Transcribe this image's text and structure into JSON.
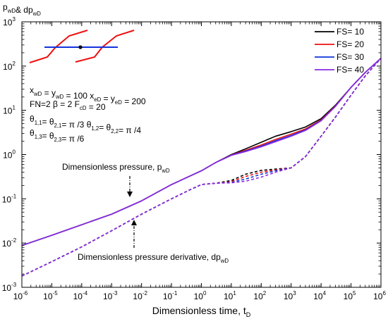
{
  "chart_data": {
    "type": "line",
    "title": "",
    "xlabel": {
      "main": "Dimensionless time, t",
      "sub": "D"
    },
    "ylabel": {
      "parts": [
        [
          "p",
          ""
        ],
        [
          "wD",
          "sub"
        ],
        [
          "& dp",
          ""
        ],
        [
          "wD",
          "sub"
        ]
      ]
    },
    "x_scale": "log",
    "y_scale": "log",
    "xlim": [
      1e-06,
      1000000.0
    ],
    "ylim": [
      0.001,
      1000.0
    ],
    "x_tick_exponents": [
      -6,
      -5,
      -4,
      -3,
      -2,
      -1,
      0,
      1,
      2,
      3,
      4,
      5,
      6
    ],
    "y_tick_exponents": [
      -3,
      -2,
      -1,
      0,
      1,
      2,
      3
    ],
    "tick_base": "10",
    "grid": false,
    "legend_position": "top-right",
    "series": [
      {
        "name": "FS= 10",
        "color": "#000000",
        "pressure": [
          [
            1e-06,
            0.0088
          ],
          [
            1e-05,
            0.015
          ],
          [
            0.0001,
            0.026
          ],
          [
            0.001,
            0.045
          ],
          [
            0.01,
            0.09
          ],
          [
            0.1,
            0.21
          ],
          [
            1,
            0.43
          ],
          [
            3,
            0.66
          ],
          [
            10,
            1.0
          ],
          [
            30,
            1.35
          ],
          [
            100,
            1.9
          ],
          [
            300,
            2.6
          ],
          [
            1000,
            3.3
          ],
          [
            3000,
            4.2
          ],
          [
            10000,
            6.5
          ],
          [
            30000,
            13
          ],
          [
            100000,
            33
          ],
          [
            300000,
            72
          ],
          [
            1000000,
            150
          ]
        ],
        "derivative": [
          [
            1e-06,
            0.0018
          ],
          [
            1e-05,
            0.0038
          ],
          [
            0.0001,
            0.0082
          ],
          [
            0.001,
            0.019
          ],
          [
            0.01,
            0.045
          ],
          [
            0.1,
            0.1
          ],
          [
            0.5,
            0.17
          ],
          [
            1,
            0.21
          ],
          [
            3,
            0.225
          ],
          [
            10,
            0.26
          ],
          [
            30,
            0.36
          ],
          [
            100,
            0.44
          ],
          [
            300,
            0.47
          ],
          [
            1000,
            0.5
          ],
          [
            3000,
            0.9
          ],
          [
            10000,
            2.6
          ],
          [
            30000,
            7
          ],
          [
            100000,
            22
          ],
          [
            300000,
            60
          ],
          [
            1000000,
            150
          ]
        ]
      },
      {
        "name": "FS= 20",
        "color": "#ee1111",
        "pressure": [
          [
            1e-06,
            0.0088
          ],
          [
            1e-05,
            0.015
          ],
          [
            0.0001,
            0.026
          ],
          [
            0.001,
            0.045
          ],
          [
            0.01,
            0.09
          ],
          [
            0.1,
            0.21
          ],
          [
            1,
            0.43
          ],
          [
            3,
            0.66
          ],
          [
            10,
            0.98
          ],
          [
            30,
            1.25
          ],
          [
            100,
            1.65
          ],
          [
            300,
            2.2
          ],
          [
            1000,
            2.9
          ],
          [
            3000,
            3.8
          ],
          [
            10000,
            6.1
          ],
          [
            30000,
            12.5
          ],
          [
            100000,
            33
          ],
          [
            300000,
            72
          ],
          [
            1000000,
            150
          ]
        ],
        "derivative": [
          [
            1e-06,
            0.0018
          ],
          [
            1e-05,
            0.0038
          ],
          [
            0.0001,
            0.0082
          ],
          [
            0.001,
            0.019
          ],
          [
            0.01,
            0.045
          ],
          [
            0.1,
            0.1
          ],
          [
            0.5,
            0.17
          ],
          [
            1,
            0.21
          ],
          [
            3,
            0.225
          ],
          [
            10,
            0.245
          ],
          [
            30,
            0.32
          ],
          [
            100,
            0.4
          ],
          [
            300,
            0.45
          ],
          [
            1000,
            0.5
          ],
          [
            3000,
            0.9
          ],
          [
            10000,
            2.6
          ],
          [
            30000,
            7
          ],
          [
            100000,
            22
          ],
          [
            300000,
            60
          ],
          [
            1000000,
            150
          ]
        ]
      },
      {
        "name": "FS= 30",
        "color": "#1133dd",
        "pressure": [
          [
            1e-06,
            0.0088
          ],
          [
            1e-05,
            0.015
          ],
          [
            0.0001,
            0.026
          ],
          [
            0.001,
            0.045
          ],
          [
            0.01,
            0.09
          ],
          [
            0.1,
            0.21
          ],
          [
            1,
            0.43
          ],
          [
            3,
            0.66
          ],
          [
            10,
            0.97
          ],
          [
            30,
            1.2
          ],
          [
            100,
            1.55
          ],
          [
            300,
            2.05
          ],
          [
            1000,
            2.7
          ],
          [
            3000,
            3.6
          ],
          [
            10000,
            5.9
          ],
          [
            30000,
            12.3
          ],
          [
            100000,
            33
          ],
          [
            300000,
            72
          ],
          [
            1000000,
            150
          ]
        ],
        "derivative": [
          [
            1e-06,
            0.0018
          ],
          [
            1e-05,
            0.0038
          ],
          [
            0.0001,
            0.0082
          ],
          [
            0.001,
            0.019
          ],
          [
            0.01,
            0.045
          ],
          [
            0.1,
            0.1
          ],
          [
            0.5,
            0.17
          ],
          [
            1,
            0.21
          ],
          [
            3,
            0.225
          ],
          [
            10,
            0.235
          ],
          [
            30,
            0.28
          ],
          [
            100,
            0.36
          ],
          [
            300,
            0.43
          ],
          [
            1000,
            0.5
          ],
          [
            3000,
            0.9
          ],
          [
            10000,
            2.6
          ],
          [
            30000,
            7
          ],
          [
            100000,
            22
          ],
          [
            300000,
            60
          ],
          [
            1000000,
            150
          ]
        ]
      },
      {
        "name": "FS= 40",
        "color": "#8a2be2",
        "pressure": [
          [
            1e-06,
            0.0088
          ],
          [
            1e-05,
            0.015
          ],
          [
            0.0001,
            0.026
          ],
          [
            0.001,
            0.045
          ],
          [
            0.01,
            0.09
          ],
          [
            0.1,
            0.21
          ],
          [
            1,
            0.43
          ],
          [
            3,
            0.66
          ],
          [
            10,
            0.96
          ],
          [
            30,
            1.17
          ],
          [
            100,
            1.5
          ],
          [
            300,
            1.95
          ],
          [
            1000,
            2.6
          ],
          [
            3000,
            3.5
          ],
          [
            10000,
            5.8
          ],
          [
            30000,
            12.2
          ],
          [
            100000,
            33
          ],
          [
            300000,
            72
          ],
          [
            1000000,
            150
          ]
        ],
        "derivative": [
          [
            1e-06,
            0.0018
          ],
          [
            1e-05,
            0.0038
          ],
          [
            0.0001,
            0.0082
          ],
          [
            0.001,
            0.019
          ],
          [
            0.01,
            0.045
          ],
          [
            0.1,
            0.1
          ],
          [
            0.5,
            0.17
          ],
          [
            1,
            0.21
          ],
          [
            3,
            0.225
          ],
          [
            10,
            0.23
          ],
          [
            30,
            0.25
          ],
          [
            100,
            0.31
          ],
          [
            300,
            0.4
          ],
          [
            1000,
            0.5
          ],
          [
            3000,
            0.9
          ],
          [
            10000,
            2.6
          ],
          [
            30000,
            7
          ],
          [
            100000,
            22
          ],
          [
            300000,
            60
          ],
          [
            1000000,
            150
          ]
        ]
      }
    ],
    "annotations": {
      "pressure_label": {
        "parts": [
          [
            "Dimensionless pressure, p",
            ""
          ],
          [
            "wD",
            "sub"
          ]
        ]
      },
      "derivative_label": {
        "parts": [
          [
            "Dimensionless pressure derivative, dp",
            ""
          ],
          [
            "wD",
            "sub"
          ]
        ]
      },
      "params": [
        {
          "parts": [
            [
              "x",
              ""
            ],
            [
              "wD",
              "sub"
            ],
            [
              " = y",
              ""
            ],
            [
              "wD",
              "sub"
            ],
            [
              " = 100   x",
              ""
            ],
            [
              "eD",
              "sub"
            ],
            [
              " = y",
              ""
            ],
            [
              "eD",
              "sub"
            ],
            [
              " = 200",
              ""
            ]
          ]
        },
        {
          "parts": [
            [
              "FN=2   β = 2   F",
              ""
            ],
            [
              "cD",
              "sub"
            ],
            [
              " = 20",
              ""
            ]
          ]
        },
        {
          "parts": [
            [
              "θ",
              ""
            ],
            [
              "1,1",
              "sub"
            ],
            [
              "= θ",
              ""
            ],
            [
              "2,1",
              "sub"
            ],
            [
              "= π /3    θ",
              ""
            ],
            [
              "1,2",
              "sub"
            ],
            [
              "= θ",
              ""
            ],
            [
              "2,2",
              "sub"
            ],
            [
              "= π /4",
              ""
            ]
          ]
        },
        {
          "parts": [
            [
              "θ",
              ""
            ],
            [
              "1,3",
              "sub"
            ],
            [
              "= θ",
              ""
            ],
            [
              "2,3",
              "sub"
            ],
            [
              "= π /6",
              ""
            ]
          ]
        }
      ]
    }
  }
}
